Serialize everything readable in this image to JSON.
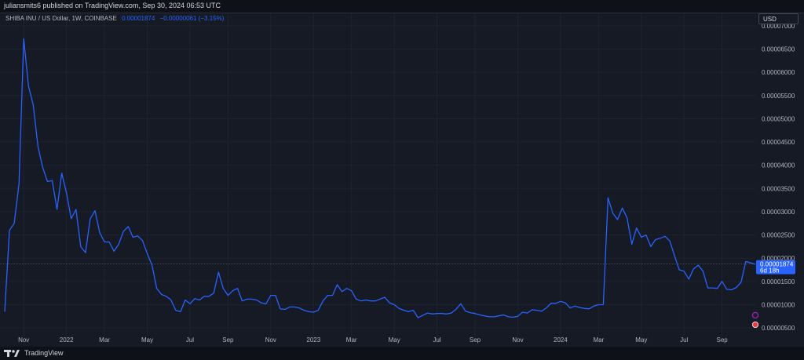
{
  "header": {
    "publish_text": "juliansmits6 published on TradingView.com, Sep 30, 2024 06:53 UTC"
  },
  "legend": {
    "symbol": "SHIBA INU / US Dollar, 1W, COINBASE",
    "last_price": "0.00001874",
    "change": "−0.00000061 (−3.15%)"
  },
  "currency": "USD",
  "last_price_label": {
    "price": "0.00001874",
    "countdown": "6d 18h"
  },
  "footer": {
    "brand": "TradingView"
  },
  "colors": {
    "line": "#2962ff",
    "background": "#161a25",
    "grid": "#1f2330",
    "text": "#b2b5be"
  },
  "chart_data": {
    "type": "line",
    "series": [
      {
        "values": [
          8.5e-06,
          2.6e-05,
          2.75e-05,
          3.6e-05,
          6.72e-05,
          5.7e-05,
          5.3e-05,
          4.4e-05,
          3.95e-05,
          3.65e-05,
          3.67e-05,
          3.05e-05,
          3.83e-05,
          3.4e-05,
          2.85e-05,
          3.05e-05,
          2.25e-05,
          2.12e-05,
          2.85e-05,
          3.02e-05,
          2.55e-05,
          2.35e-05,
          2.35e-05,
          2.15e-05,
          2.3e-05,
          2.58e-05,
          2.68e-05,
          2.45e-05,
          2.48e-05,
          2.38e-05,
          2.1e-05,
          1.85e-05,
          1.35e-05,
          1.22e-05,
          1.18e-05,
          1.1e-05,
          8.8e-06,
          8.5e-06,
          1.1e-05,
          1.02e-05,
          1.13e-05,
          1.1e-05,
          1.18e-05,
          1.18e-05,
          1.25e-05,
          1.7e-05,
          1.35e-05,
          1.2e-05,
          1.3e-05,
          1.35e-05,
          1.08e-05,
          1.12e-05,
          1.12e-05,
          1.1e-05,
          1.04e-05,
          1.02e-05,
          1.2e-05,
          1.2e-05,
          9.1e-06,
          9e-06,
          9.5e-06,
          9.5e-06,
          9.3e-06,
          8.8e-06,
          8.5e-06,
          8.4e-06,
          8.8e-06,
          1.08e-05,
          1.2e-05,
          1.2e-05,
          1.43e-05,
          1.28e-05,
          1.35e-05,
          1.3e-05,
          1.12e-05,
          1.08e-05,
          1.1e-05,
          1.08e-05,
          1.08e-05,
          1.12e-05,
          1.16e-05,
          1.04e-05,
          1e-05,
          9.2e-06,
          8.8e-06,
          8.5e-06,
          8.8e-06,
          7.2e-06,
          7.7e-06,
          8.2e-06,
          8e-06,
          8.1e-06,
          8.1e-06,
          8e-06,
          8.2e-06,
          9e-06,
          1.02e-05,
          8.6e-06,
          8.3e-06,
          8.1e-06,
          7.8e-06,
          7.6e-06,
          7.4e-06,
          7.4e-06,
          7.6e-06,
          7.8e-06,
          7.4e-06,
          7.3e-06,
          7.5e-06,
          8.4e-06,
          8.2e-06,
          8.9e-06,
          8.8e-06,
          8.6e-06,
          9.3e-06,
          1.03e-05,
          1.03e-05,
          1.07e-05,
          1.04e-05,
          9.3e-06,
          9.7e-06,
          9.4e-06,
          9.2e-06,
          9.1e-06,
          9.7e-06,
          1e-05,
          1e-05,
          3.3e-05,
          2.97e-05,
          2.83e-05,
          3.08e-05,
          2.87e-05,
          2.3e-05,
          2.65e-05,
          2.45e-05,
          2.5e-05,
          2.25e-05,
          2.4e-05,
          2.43e-05,
          2.47e-05,
          2.37e-05,
          2.05e-05,
          1.75e-05,
          1.72e-05,
          1.55e-05,
          1.77e-05,
          1.85e-05,
          1.72e-05,
          1.36e-05,
          1.36e-05,
          1.35e-05,
          1.5e-05,
          1.33e-05,
          1.32e-05,
          1.37e-05,
          1.48e-05,
          1.93e-05,
          1.9e-05,
          1.87e-05
        ]
      }
    ],
    "x_ticks": [
      {
        "label": "Nov",
        "index": 4
      },
      {
        "label": "2022",
        "index": 13
      },
      {
        "label": "Mar",
        "index": 21
      },
      {
        "label": "May",
        "index": 30
      },
      {
        "label": "Jul",
        "index": 39
      },
      {
        "label": "Sep",
        "index": 47
      },
      {
        "label": "Nov",
        "index": 56
      },
      {
        "label": "2023",
        "index": 65
      },
      {
        "label": "Mar",
        "index": 73
      },
      {
        "label": "May",
        "index": 82
      },
      {
        "label": "Jul",
        "index": 91
      },
      {
        "label": "Sep",
        "index": 99
      },
      {
        "label": "Nov",
        "index": 108
      },
      {
        "label": "2024",
        "index": 117
      },
      {
        "label": "Mar",
        "index": 125
      },
      {
        "label": "May",
        "index": 134
      },
      {
        "label": "Jul",
        "index": 143
      },
      {
        "label": "Sep",
        "index": 151
      }
    ],
    "y_ticks": [
      "0.00000500",
      "0.00001000",
      "0.00001500",
      "0.00002000",
      "0.00002500",
      "0.00003000",
      "0.00003500",
      "0.00004000",
      "0.00004500",
      "0.00005000",
      "0.00005500",
      "0.00006000",
      "0.00006500",
      "0.00007000"
    ],
    "ylim": [
      3.5e-06,
      7.2e-05
    ],
    "current_price": 1.874e-05,
    "grid": true
  }
}
